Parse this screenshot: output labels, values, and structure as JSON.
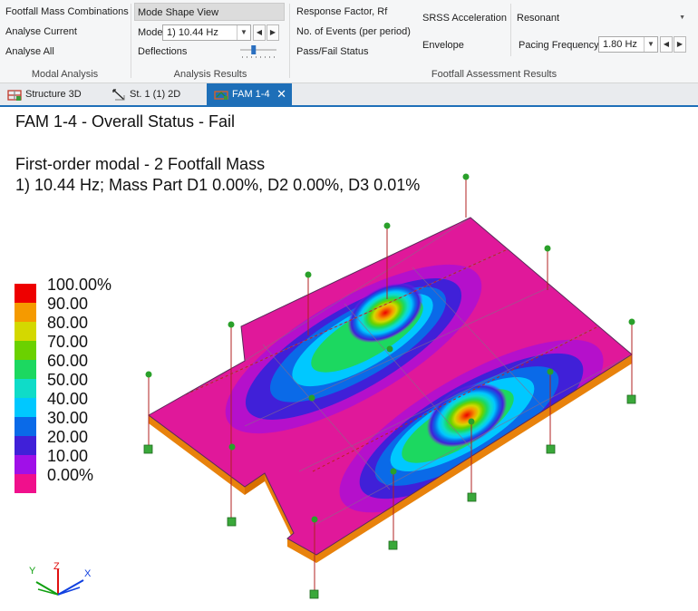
{
  "ribbon": {
    "modal_analysis": {
      "label": "Modal Analysis",
      "items": [
        "Footfall Mass Combinations",
        "Analyse Current",
        "Analyse All"
      ]
    },
    "analysis_results": {
      "label": "Analysis Results",
      "mode_shape_view": "Mode Shape View",
      "mode_label": "Mode",
      "mode_value": "1) 10.44 Hz",
      "deflections_label": "Deflections",
      "deflection_slider_fraction": 0.35
    },
    "footfall_results": {
      "label": "Footfall Assessment Results",
      "response_factor": "Response Factor, Rf",
      "no_of_events": "No. of Events (per period)",
      "pass_fail": "Pass/Fail Status",
      "srss": "SRSS Acceleration",
      "envelope": "Envelope",
      "resonant_value": "Resonant",
      "pacing_label": "Pacing Frequency",
      "pacing_value": "1.80 Hz"
    }
  },
  "tabs": [
    {
      "label": "Structure 3D",
      "icon": "structure-3d-icon"
    },
    {
      "label": "St. 1 (1) 2D",
      "icon": "plan-2d-icon"
    },
    {
      "label": "FAM 1-4",
      "icon": "fam-icon",
      "active": true
    }
  ],
  "view": {
    "title": "FAM 1-4 - Overall Status - Fail",
    "subtitle1": "First-order modal - 2 Footfall Mass",
    "subtitle2": "1) 10.44 Hz; Mass Part D1 0.00%, D2 0.00%, D3 0.01%"
  },
  "legend": {
    "entries": [
      {
        "label": "100.00%",
        "color": "#ee0000"
      },
      {
        "label": "90.00",
        "color": "#f59a00"
      },
      {
        "label": "80.00",
        "color": "#d4d800"
      },
      {
        "label": "70.00",
        "color": "#6bd100"
      },
      {
        "label": "60.00",
        "color": "#1cd860"
      },
      {
        "label": "50.00",
        "color": "#0fdcc8"
      },
      {
        "label": "40.00",
        "color": "#00c8ff"
      },
      {
        "label": "30.00",
        "color": "#0a6ae8"
      },
      {
        "label": "20.00",
        "color": "#4020d8"
      },
      {
        "label": "10.00",
        "color": "#a010e8"
      },
      {
        "label": "0.00%",
        "color": "#f0108c"
      }
    ]
  },
  "axes": {
    "x": "X",
    "y": "Y",
    "z": "Z"
  }
}
